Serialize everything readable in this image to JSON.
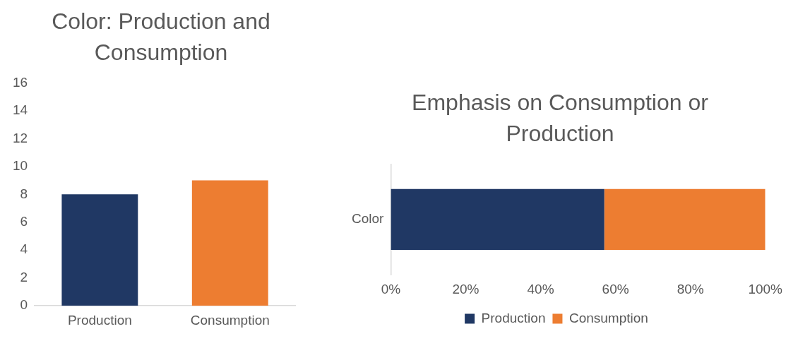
{
  "chart_data": [
    {
      "type": "bar",
      "title": "Color: Production and Consumption",
      "categories": [
        "Production",
        "Consumption"
      ],
      "values": [
        8,
        9
      ],
      "colors": [
        "#203864",
        "#ed7d31"
      ],
      "ylim": [
        0,
        16
      ],
      "yticks": [
        0,
        2,
        4,
        6,
        8,
        10,
        12,
        14,
        16
      ]
    },
    {
      "type": "bar",
      "title": "Emphasis on Consumption or Production",
      "orientation": "horizontal",
      "stacked": true,
      "categories": [
        "Color"
      ],
      "series": [
        {
          "name": "Production",
          "color": "#203864",
          "values": [
            57
          ]
        },
        {
          "name": "Consumption",
          "color": "#ed7d31",
          "values": [
            43
          ]
        }
      ],
      "xlim": [
        0,
        100
      ],
      "xticks": [
        {
          "value": 0,
          "label": "0%"
        },
        {
          "value": 20,
          "label": "20%"
        },
        {
          "value": 40,
          "label": "40%"
        },
        {
          "value": 60,
          "label": "60%"
        },
        {
          "value": 80,
          "label": "80%"
        },
        {
          "value": 100,
          "label": "100%"
        }
      ],
      "legend": "bottom"
    }
  ]
}
